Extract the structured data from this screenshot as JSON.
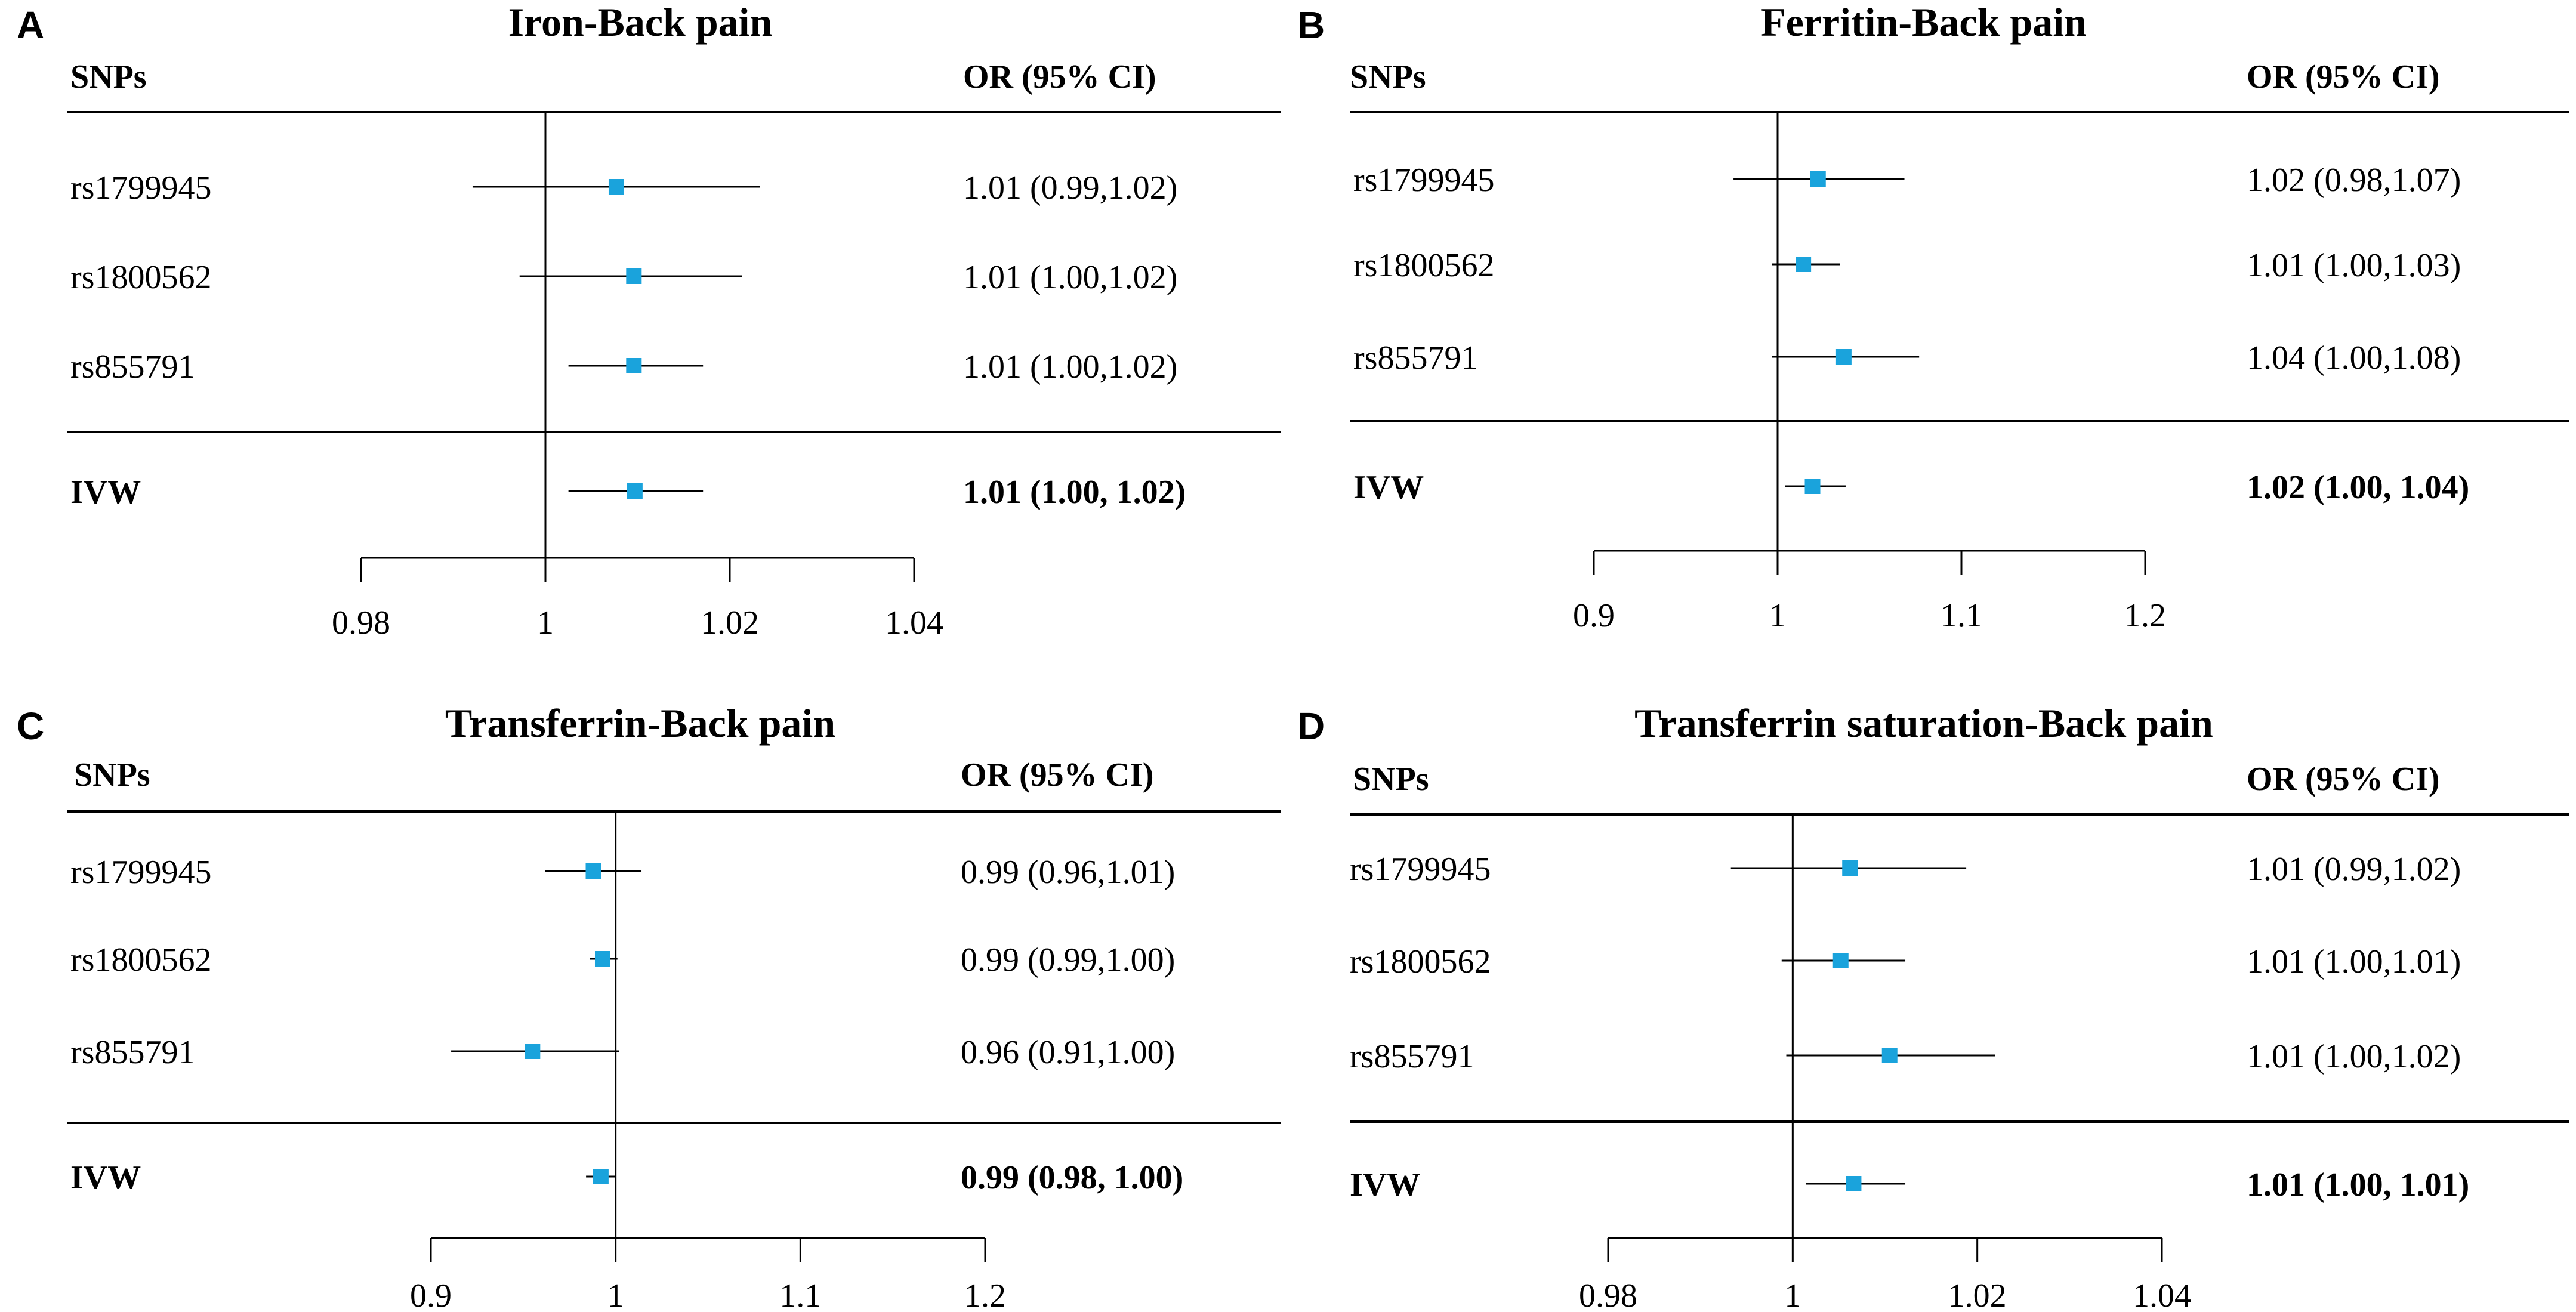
{
  "colors": {
    "marker": "#1aa3dc",
    "line": "#000000",
    "text": "#000000"
  },
  "chart_data": [
    {
      "type": "forest",
      "panel_label": "A",
      "title": "Iron-Back pain",
      "col_snp_header": "SNPs",
      "col_or_header": "OR (95% CI)",
      "xlim": [
        0.98,
        1.04
      ],
      "xticks": [
        0.98,
        1,
        1.02,
        1.04
      ],
      "xtick_labels": [
        "0.98",
        "1",
        "1.02",
        "1.04"
      ],
      "ref_line": 1,
      "rows": [
        {
          "label": "rs1799945",
          "or": 1.0077,
          "lo": 0.9921,
          "hi": 1.0233,
          "text": "1.01 (0.99,1.02)"
        },
        {
          "label": "rs1800562",
          "or": 1.0096,
          "lo": 0.9972,
          "hi": 1.0213,
          "text": "1.01 (1.00,1.02)"
        },
        {
          "label": "rs855791",
          "or": 1.0096,
          "lo": 1.0025,
          "hi": 1.0171,
          "text": "1.01 (1.00,1.02)"
        }
      ],
      "summary": {
        "label": "IVW",
        "or": 1.0097,
        "lo": 1.0025,
        "hi": 1.0171,
        "text": "1.01 (1.00, 1.02)"
      }
    },
    {
      "type": "forest",
      "panel_label": "B",
      "title": "Ferritin-Back pain",
      "col_snp_header": "SNPs",
      "col_or_header": "OR (95% CI)",
      "xlim": [
        0.9,
        1.2
      ],
      "xticks": [
        0.9,
        1,
        1.1,
        1.2
      ],
      "xtick_labels": [
        "0.9",
        "1",
        "1.1",
        "1.2"
      ],
      "ref_line": 1,
      "rows": [
        {
          "label": "rs1799945",
          "or": 1.022,
          "lo": 0.976,
          "hi": 1.069,
          "text": "1.02 (0.98,1.07)"
        },
        {
          "label": "rs1800562",
          "or": 1.014,
          "lo": 0.997,
          "hi": 1.034,
          "text": "1.01 (1.00,1.03)"
        },
        {
          "label": "rs855791",
          "or": 1.036,
          "lo": 0.997,
          "hi": 1.077,
          "text": "1.04 (1.00,1.08)"
        }
      ],
      "summary": {
        "label": "IVW",
        "or": 1.019,
        "lo": 1.004,
        "hi": 1.037,
        "text": "1.02 (1.00, 1.04)"
      }
    },
    {
      "type": "forest",
      "panel_label": "C",
      "title": "Transferrin-Back pain",
      "col_snp_header": "SNPs",
      "col_or_header": "OR (95% CI)",
      "xlim": [
        0.9,
        1.2
      ],
      "xticks": [
        0.9,
        1,
        1.1,
        1.2
      ],
      "xtick_labels": [
        "0.9",
        "1",
        "1.1",
        "1.2"
      ],
      "ref_line": 1,
      "rows": [
        {
          "label": "rs1799945",
          "or": 0.988,
          "lo": 0.962,
          "hi": 1.014,
          "text": "0.99 (0.96,1.01)"
        },
        {
          "label": "rs1800562",
          "or": 0.993,
          "lo": 0.986,
          "hi": 1.001,
          "text": "0.99 (0.99,1.00)"
        },
        {
          "label": "rs855791",
          "or": 0.955,
          "lo": 0.911,
          "hi": 1.002,
          "text": "0.96 (0.91,1.00)"
        }
      ],
      "summary": {
        "label": "IVW",
        "or": 0.992,
        "lo": 0.984,
        "hi": 1.0,
        "text": "0.99 (0.98, 1.00)"
      }
    },
    {
      "type": "forest",
      "panel_label": "D",
      "title": "Transferrin saturation-Back pain",
      "col_snp_header": "SNPs",
      "col_or_header": "OR (95% CI)",
      "xlim": [
        0.98,
        1.04
      ],
      "xticks": [
        0.98,
        1,
        1.02,
        1.04
      ],
      "xtick_labels": [
        "0.98",
        "1",
        "1.02",
        "1.04"
      ],
      "ref_line": 1,
      "rows": [
        {
          "label": "rs1799945",
          "or": 1.0062,
          "lo": 0.9933,
          "hi": 1.0188,
          "text": "1.01 (0.99,1.02)"
        },
        {
          "label": "rs1800562",
          "or": 1.0052,
          "lo": 0.9988,
          "hi": 1.0122,
          "text": "1.01 (1.00,1.01)"
        },
        {
          "label": "rs855791",
          "or": 1.0105,
          "lo": 0.9993,
          "hi": 1.0219,
          "text": "1.01 (1.00,1.02)"
        }
      ],
      "summary": {
        "label": "IVW",
        "or": 1.0066,
        "lo": 1.0014,
        "hi": 1.0122,
        "text": "1.01 (1.00, 1.01)"
      }
    }
  ]
}
